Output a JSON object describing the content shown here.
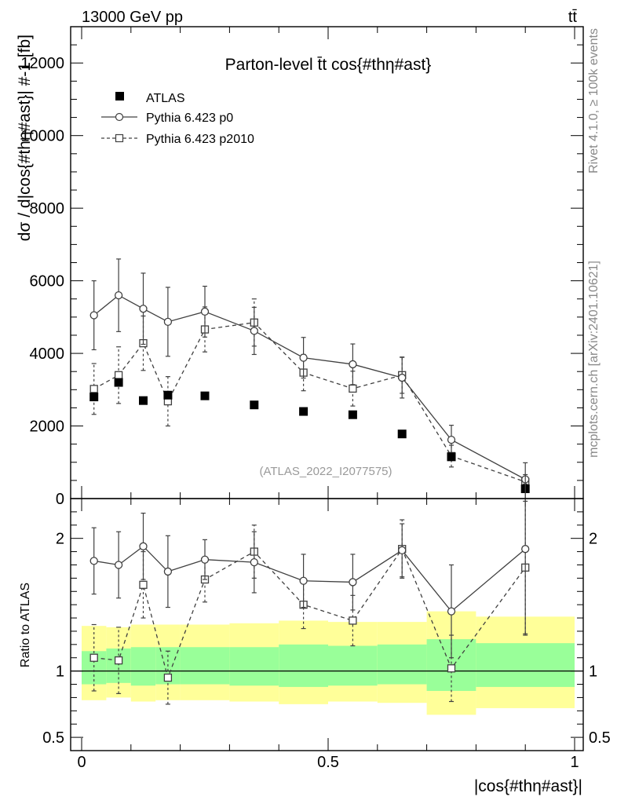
{
  "header": {
    "energy": "13000 GeV pp",
    "process": "tt̄"
  },
  "chart_data": {
    "type": "scatter",
    "title": "Parton-level t̄t cos{#thη#ast}",
    "xlabel": "|cos{#thη#ast}|",
    "ylabel": "dσ / d|cos{#thη#ast}| #-1 [fb]",
    "ratio_ylabel": "Ratio to ATLAS",
    "analysis_id": "(ATLAS_2022_I2077575)",
    "side_label_rivet": "Rivet 4.1.0, ≥ 100k events",
    "side_label_mcplots": "mcplots.cern.ch [arXiv:2401.10621]",
    "xlim": [
      0,
      1
    ],
    "ylim": [
      0,
      13000
    ],
    "ratio_ylim": [
      0.4,
      2.3
    ],
    "xticks": [
      {
        "v": 0,
        "label": "0"
      },
      {
        "v": 0.5,
        "label": "0.5"
      },
      {
        "v": 1,
        "label": "1"
      }
    ],
    "yticks": [
      {
        "v": 0,
        "label": "0"
      },
      {
        "v": 2000,
        "label": "2000"
      },
      {
        "v": 4000,
        "label": "4000"
      },
      {
        "v": 6000,
        "label": "6000"
      },
      {
        "v": 8000,
        "label": "8000"
      },
      {
        "v": 10000,
        "label": "10000"
      },
      {
        "v": 12000,
        "label": "12000"
      }
    ],
    "ratio_yticks": [
      {
        "v": 0.5,
        "label": "0.5"
      },
      {
        "v": 1,
        "label": "1"
      },
      {
        "v": 2,
        "label": "2"
      }
    ],
    "bins": [
      0,
      0.05,
      0.1,
      0.15,
      0.2,
      0.3,
      0.4,
      0.5,
      0.6,
      0.7,
      0.8,
      1.0
    ],
    "x": [
      0.025,
      0.075,
      0.125,
      0.175,
      0.25,
      0.35,
      0.45,
      0.55,
      0.65,
      0.75,
      0.9
    ],
    "bands_inner": [
      0.9,
      0.91,
      0.89,
      0.9,
      0.9,
      0.89,
      0.88,
      0.89,
      0.9,
      0.85,
      0.88
    ],
    "bands_inner_hi": [
      1.15,
      1.17,
      1.18,
      1.18,
      1.18,
      1.18,
      1.2,
      1.19,
      1.2,
      1.24,
      1.21
    ],
    "bands_outer_lo": [
      0.78,
      0.8,
      0.77,
      0.78,
      0.78,
      0.77,
      0.75,
      0.77,
      0.76,
      0.67,
      0.72
    ],
    "bands_outer_hi": [
      1.34,
      1.33,
      1.35,
      1.35,
      1.35,
      1.36,
      1.38,
      1.37,
      1.37,
      1.45,
      1.41
    ],
    "series": [
      {
        "name": "ATLAS",
        "marker": "filled-square",
        "values": [
          2800,
          3200,
          2700,
          2850,
          2830,
          2580,
          2400,
          2310,
          1780,
          1150,
          270
        ]
      },
      {
        "name": "Pythia 6.423 p0",
        "marker": "open-circle",
        "line": "solid",
        "values": [
          5050,
          5600,
          5230,
          4870,
          5150,
          4620,
          3880,
          3700,
          3330,
          1620,
          530
        ],
        "err": [
          950,
          1000,
          980,
          950,
          700,
          650,
          560,
          560,
          560,
          400,
          130
        ],
        "ratio": [
          1.83,
          1.8,
          1.94,
          1.75,
          1.84,
          1.82,
          1.68,
          1.67,
          1.91,
          1.45,
          1.92
        ],
        "ratio_err": [
          0.25,
          0.25,
          0.25,
          0.27,
          0.15,
          0.23,
          0.2,
          0.21,
          0.2,
          0.35,
          0.65
        ]
      },
      {
        "name": "Pythia 6.423 p2010",
        "marker": "open-square",
        "line": "dashed",
        "values": [
          3020,
          3400,
          4280,
          2680,
          4660,
          4850,
          3470,
          3030,
          3400,
          1170,
          460
        ],
        "err": [
          700,
          780,
          750,
          680,
          620,
          650,
          500,
          480,
          500,
          300,
          120
        ],
        "ratio": [
          1.1,
          1.08,
          1.65,
          0.95,
          1.69,
          1.9,
          1.5,
          1.38,
          1.92,
          1.02,
          1.78
        ],
        "ratio_err": [
          0.25,
          0.25,
          0.25,
          0.2,
          0.17,
          0.2,
          0.18,
          0.19,
          0.22,
          0.25,
          0.5
        ]
      }
    ]
  }
}
